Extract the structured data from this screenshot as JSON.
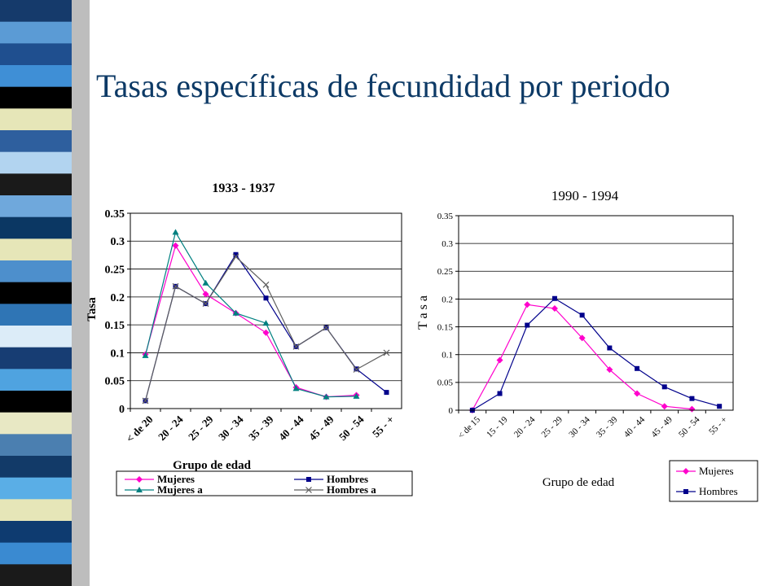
{
  "slide": {
    "title": "Tasas específicas de fecundidad por periodo"
  },
  "colors": {
    "title": "#0d3a66",
    "stripes": [
      "#153a6b",
      "#5b9bd5",
      "#1f4f8f",
      "#3f8fd6",
      "#000000",
      "#e6e6b8",
      "#2e5f9e",
      "#b2d4f0",
      "#1a1a1a",
      "#6fa8dc",
      "#0b3763",
      "#e6e6b8",
      "#4d8fcc",
      "#000000",
      "#2f75b5",
      "#dcecf8",
      "#173d73",
      "#4fa3e0",
      "#000000",
      "#e8e8c4",
      "#4b7fb0",
      "#123a68",
      "#5aaee6",
      "#e6e6b8",
      "#0e3b70",
      "#3a8ad1",
      "#1a1a1a"
    ],
    "mujeres": "#ff00cc",
    "hombres": "#00008b",
    "mujeres_a": "#008080",
    "hombres_a": "#606060"
  },
  "chart_data": [
    {
      "type": "line",
      "title": "1933 - 1937",
      "xlabel": "Grupo de edad",
      "ylabel": "Tasa",
      "ylim": [
        0,
        0.35
      ],
      "yticks": [
        "0",
        "0.05",
        "0.1",
        "0.15",
        "0.2",
        "0.25",
        "0.3",
        "0.35"
      ],
      "categories": [
        "< de 20",
        "20 - 24",
        "25 - 29",
        "30 - 34",
        "35 - 39",
        "40 - 44",
        "45 - 49",
        "50 - 54",
        "55 - +"
      ],
      "grid": true,
      "legend_position": "bottom",
      "series": [
        {
          "name": "Mujeres",
          "values": [
            0.097,
            0.292,
            0.205,
            0.171,
            0.136,
            0.038,
            0.021,
            0.024,
            null
          ]
        },
        {
          "name": "Hombres",
          "values": [
            0.014,
            0.219,
            0.188,
            0.276,
            0.198,
            0.111,
            0.145,
            0.071,
            0.029
          ]
        },
        {
          "name": "Mujeres a",
          "values": [
            0.095,
            0.316,
            0.225,
            0.171,
            0.153,
            0.036,
            0.021,
            0.022,
            null
          ]
        },
        {
          "name": "Hombres a",
          "values": [
            0.014,
            0.219,
            0.188,
            0.272,
            0.222,
            0.111,
            0.145,
            0.07,
            0.1
          ]
        }
      ]
    },
    {
      "type": "line",
      "title": "1990 - 1994",
      "xlabel": "Grupo de edad",
      "ylabel": "T a s a",
      "ylim": [
        0,
        0.35
      ],
      "yticks": [
        "0",
        "0.05",
        "0.1",
        "0.15",
        "0.2",
        "0.25",
        "0.3",
        "0.35"
      ],
      "categories": [
        "< de 15",
        "15 - 19",
        "20 - 24",
        "25 - 29",
        "30 - 34",
        "35 - 39",
        "40 - 44",
        "45 - 49",
        "50 - 54",
        "55 - +"
      ],
      "grid": true,
      "legend_position": "bottom-right",
      "series": [
        {
          "name": "Mujeres",
          "values": [
            0.0,
            0.09,
            0.19,
            0.183,
            0.13,
            0.073,
            0.03,
            0.007,
            0.002,
            null
          ]
        },
        {
          "name": "Hombres",
          "values": [
            0.0,
            0.03,
            0.153,
            0.201,
            0.171,
            0.112,
            0.075,
            0.042,
            0.021,
            0.007
          ]
        }
      ]
    }
  ]
}
